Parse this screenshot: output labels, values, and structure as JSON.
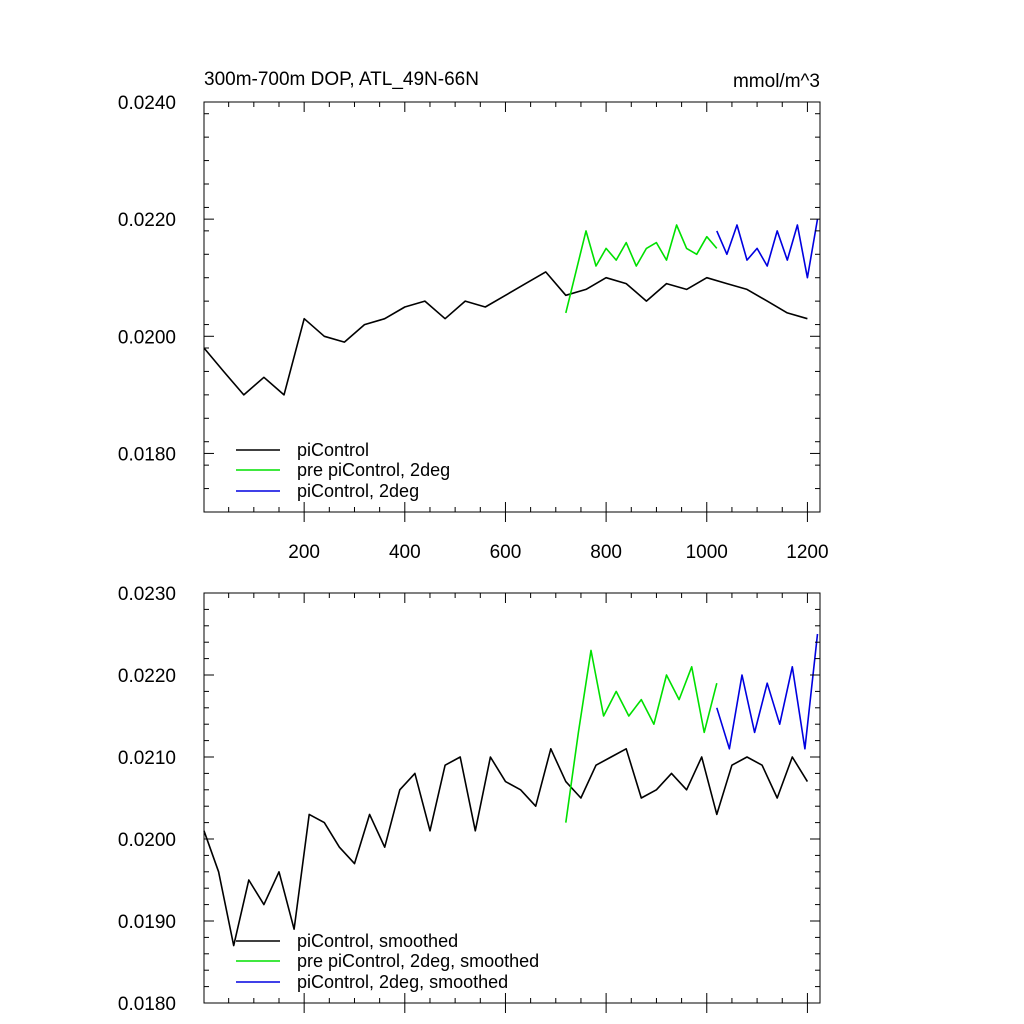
{
  "chart_data": [
    {
      "type": "line",
      "title": "300m-700m DOP, ATL_49N-66N",
      "units_label": "mmol/m^3",
      "xlabel": "",
      "ylabel": "",
      "xlim": [
        1,
        1225
      ],
      "ylim": [
        0.017,
        0.024
      ],
      "yticks": [
        "0.0180",
        "0.0200",
        "0.0220",
        "0.0240"
      ],
      "xticks": [
        "200",
        "400",
        "600",
        "800",
        "1000",
        "1200"
      ],
      "legend_position": "bottom-left",
      "series": [
        {
          "name": "piControl",
          "color": "#000000",
          "x": [
            1,
            40,
            80,
            120,
            160,
            200,
            240,
            280,
            320,
            360,
            400,
            440,
            480,
            520,
            560,
            600,
            640,
            680,
            720,
            760,
            800,
            840,
            880,
            920,
            960,
            1000,
            1040,
            1080,
            1120,
            1160,
            1200
          ],
          "values": [
            0.0198,
            0.0194,
            0.019,
            0.0193,
            0.019,
            0.0203,
            0.02,
            0.0199,
            0.0202,
            0.0203,
            0.0205,
            0.0206,
            0.0203,
            0.0206,
            0.0205,
            0.0207,
            0.0209,
            0.0211,
            0.0207,
            0.0208,
            0.021,
            0.0209,
            0.0206,
            0.0209,
            0.0208,
            0.021,
            0.0209,
            0.0208,
            0.0206,
            0.0204,
            0.0203
          ]
        },
        {
          "name": "pre piControl, 2deg",
          "color": "#00e000",
          "x": [
            720,
            740,
            760,
            780,
            800,
            820,
            840,
            860,
            880,
            900,
            920,
            940,
            960,
            980,
            1000,
            1020
          ],
          "values": [
            0.0204,
            0.0211,
            0.0218,
            0.0212,
            0.0215,
            0.0213,
            0.0216,
            0.0212,
            0.0215,
            0.0216,
            0.0213,
            0.0219,
            0.0215,
            0.0214,
            0.0217,
            0.0215
          ]
        },
        {
          "name": "piControl, 2deg",
          "color": "#0000e0",
          "x": [
            1020,
            1040,
            1060,
            1080,
            1100,
            1120,
            1140,
            1160,
            1180,
            1200,
            1220
          ],
          "values": [
            0.0218,
            0.0214,
            0.0219,
            0.0213,
            0.0215,
            0.0212,
            0.0218,
            0.0213,
            0.0219,
            0.021,
            0.022
          ]
        }
      ]
    },
    {
      "type": "line",
      "title": "",
      "xlabel": "",
      "ylabel": "",
      "xlim": [
        1,
        1225
      ],
      "ylim": [
        0.018,
        0.023
      ],
      "yticks": [
        "0.0180",
        "0.0190",
        "0.0200",
        "0.0210",
        "0.0220",
        "0.0230"
      ],
      "legend_position": "bottom-left",
      "series": [
        {
          "name": "piControl, smoothed",
          "color": "#000000",
          "x": [
            1,
            30,
            60,
            90,
            120,
            150,
            180,
            210,
            240,
            270,
            300,
            330,
            360,
            390,
            420,
            450,
            480,
            510,
            540,
            570,
            600,
            630,
            660,
            690,
            720,
            750,
            780,
            810,
            840,
            870,
            900,
            930,
            960,
            990,
            1020,
            1050,
            1080,
            1110,
            1140,
            1170,
            1200
          ],
          "values": [
            0.0201,
            0.0196,
            0.0187,
            0.0195,
            0.0192,
            0.0196,
            0.0189,
            0.0203,
            0.0202,
            0.0199,
            0.0197,
            0.0203,
            0.0199,
            0.0206,
            0.0208,
            0.0201,
            0.0209,
            0.021,
            0.0201,
            0.021,
            0.0207,
            0.0206,
            0.0204,
            0.0211,
            0.0207,
            0.0205,
            0.0209,
            0.021,
            0.0211,
            0.0205,
            0.0206,
            0.0208,
            0.0206,
            0.021,
            0.0203,
            0.0209,
            0.021,
            0.0209,
            0.0205,
            0.021,
            0.0207
          ]
        },
        {
          "name": "pre piControl, 2deg, smoothed",
          "color": "#00e000",
          "x": [
            720,
            745,
            770,
            795,
            820,
            845,
            870,
            895,
            920,
            945,
            970,
            995,
            1020
          ],
          "values": [
            0.0202,
            0.0213,
            0.0223,
            0.0215,
            0.0218,
            0.0215,
            0.0217,
            0.0214,
            0.022,
            0.0217,
            0.0221,
            0.0213,
            0.0219
          ]
        },
        {
          "name": "piControl, 2deg, smoothed",
          "color": "#0000e0",
          "x": [
            1020,
            1045,
            1070,
            1095,
            1120,
            1145,
            1170,
            1195,
            1220
          ],
          "values": [
            0.0216,
            0.0211,
            0.022,
            0.0213,
            0.0219,
            0.0214,
            0.0221,
            0.0211,
            0.0225
          ]
        }
      ]
    }
  ]
}
